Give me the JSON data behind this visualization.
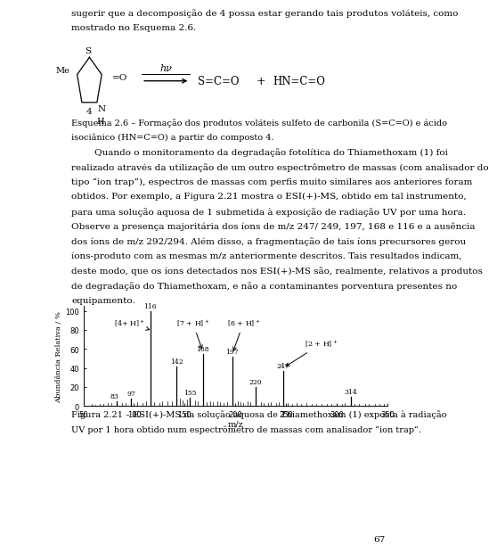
{
  "page_width": 4.52,
  "page_height": 6.4,
  "bg_color": "#ffffff",
  "text_color": "#000000",
  "paragraph1_lines": [
    "sugerir que a decomposição de 4 possa estar gerando tais produtos voláteis, como",
    "mostrado no Esquema 2.6."
  ],
  "scheme_caption_lines": [
    "Esquema 2.6 – Formação dos produtos voláteis sulfeto de carbonila (S=C=O) e ácido",
    "isociânico (HN=C=O) a partir do composto 4."
  ],
  "paragraph2_lines": [
    "        Quando o monitoramento da degradação fotolítica do Thiamethoxam (1) foi",
    "realizado através da utilização de um outro espectrômetro de massas (com analisador do",
    "tipo “ion trap”), espectros de massas com perfis muito similares aos anteriores foram",
    "obtidos. Por exemplo, a Figura 2.21 mostra o ESI(+)-MS, obtido em tal instrumento,",
    "para uma solução aquosa de 1 submetida à exposição de radiação UV por uma hora.",
    "Observe a presença majoritária dos íons de m/z 247/ 249, 197, 168 e 116 e a ausência",
    "dos íons de m/z 292/294. Além disso, a fragmentação de tais íons precursores gerou",
    "íons-produto com as mesmas m/z anteriormente descritos. Tais resultados indicam,",
    "deste modo, que os íons detectados nos ESI(+)-MS são, realmente, relativos a produtos",
    "de degradação do Thiamethoxam, e não a contaminantes porventura presentes no",
    "equipamento."
  ],
  "spectrum_xlim": [
    50,
    350
  ],
  "spectrum_ylim": [
    0,
    100
  ],
  "spectrum_xlabel": "m/z",
  "spectrum_ylabel": "Abundância Relativa / %",
  "spectrum_yticks": [
    0,
    20,
    40,
    60,
    80,
    100
  ],
  "spectrum_xticks": [
    50,
    100,
    150,
    200,
    250,
    300,
    350
  ],
  "peaks": [
    {
      "mz": 83,
      "intensity": 5,
      "label": "83"
    },
    {
      "mz": 97,
      "intensity": 8,
      "label": "97"
    },
    {
      "mz": 116,
      "intensity": 100,
      "label": "116"
    },
    {
      "mz": 142,
      "intensity": 42,
      "label": "142"
    },
    {
      "mz": 155,
      "intensity": 9,
      "label": "155"
    },
    {
      "mz": 168,
      "intensity": 55,
      "label": "168"
    },
    {
      "mz": 197,
      "intensity": 52,
      "label": "197"
    },
    {
      "mz": 220,
      "intensity": 20,
      "label": "220"
    },
    {
      "mz": 247,
      "intensity": 37,
      "label": "247"
    },
    {
      "mz": 314,
      "intensity": 10,
      "label": "314"
    }
  ],
  "small_peaks": [
    {
      "mz": 58,
      "intensity": 2
    },
    {
      "mz": 62,
      "intensity": 1
    },
    {
      "mz": 66,
      "intensity": 2
    },
    {
      "mz": 70,
      "intensity": 2
    },
    {
      "mz": 74,
      "intensity": 3
    },
    {
      "mz": 78,
      "intensity": 3
    },
    {
      "mz": 88,
      "intensity": 3
    },
    {
      "mz": 92,
      "intensity": 3
    },
    {
      "mz": 103,
      "intensity": 4
    },
    {
      "mz": 108,
      "intensity": 3
    },
    {
      "mz": 112,
      "intensity": 5
    },
    {
      "mz": 120,
      "intensity": 4
    },
    {
      "mz": 125,
      "intensity": 3
    },
    {
      "mz": 128,
      "intensity": 5
    },
    {
      "mz": 133,
      "intensity": 5
    },
    {
      "mz": 137,
      "intensity": 5
    },
    {
      "mz": 145,
      "intensity": 8
    },
    {
      "mz": 148,
      "intensity": 6
    },
    {
      "mz": 152,
      "intensity": 7
    },
    {
      "mz": 160,
      "intensity": 6
    },
    {
      "mz": 163,
      "intensity": 5
    },
    {
      "mz": 172,
      "intensity": 4
    },
    {
      "mz": 175,
      "intensity": 5
    },
    {
      "mz": 178,
      "intensity": 4
    },
    {
      "mz": 182,
      "intensity": 5
    },
    {
      "mz": 185,
      "intensity": 4
    },
    {
      "mz": 188,
      "intensity": 3
    },
    {
      "mz": 192,
      "intensity": 4
    },
    {
      "mz": 202,
      "intensity": 5
    },
    {
      "mz": 205,
      "intensity": 4
    },
    {
      "mz": 208,
      "intensity": 3
    },
    {
      "mz": 212,
      "intensity": 5
    },
    {
      "mz": 215,
      "intensity": 4
    },
    {
      "mz": 225,
      "intensity": 4
    },
    {
      "mz": 228,
      "intensity": 3
    },
    {
      "mz": 232,
      "intensity": 3
    },
    {
      "mz": 235,
      "intensity": 4
    },
    {
      "mz": 240,
      "intensity": 3
    },
    {
      "mz": 243,
      "intensity": 4
    },
    {
      "mz": 252,
      "intensity": 3
    },
    {
      "mz": 256,
      "intensity": 2
    },
    {
      "mz": 260,
      "intensity": 3
    },
    {
      "mz": 265,
      "intensity": 2
    },
    {
      "mz": 270,
      "intensity": 3
    },
    {
      "mz": 275,
      "intensity": 2
    },
    {
      "mz": 280,
      "intensity": 2
    },
    {
      "mz": 285,
      "intensity": 2
    },
    {
      "mz": 290,
      "intensity": 2
    },
    {
      "mz": 295,
      "intensity": 2
    },
    {
      "mz": 300,
      "intensity": 2
    },
    {
      "mz": 305,
      "intensity": 2
    },
    {
      "mz": 308,
      "intensity": 3
    },
    {
      "mz": 318,
      "intensity": 2
    },
    {
      "mz": 322,
      "intensity": 2
    },
    {
      "mz": 328,
      "intensity": 2
    },
    {
      "mz": 332,
      "intensity": 2
    },
    {
      "mz": 338,
      "intensity": 2
    },
    {
      "mz": 342,
      "intensity": 2
    },
    {
      "mz": 347,
      "intensity": 2
    }
  ],
  "annotations": [
    {
      "label": "[4+ H]$^+$",
      "text_mz": 96,
      "text_int": 82,
      "peak_mz": 116,
      "peak_int": 80
    },
    {
      "label": "[7 + H]$^+$",
      "text_mz": 158,
      "text_int": 82,
      "peak_mz": 168,
      "peak_int": 57
    },
    {
      "label": "[6 + H]$^+$",
      "text_mz": 208,
      "text_int": 82,
      "peak_mz": 197,
      "peak_int": 55
    },
    {
      "label": "[2 + H]$^+$",
      "text_mz": 285,
      "text_int": 60,
      "peak_mz": 247,
      "peak_int": 40
    }
  ],
  "figure_caption_lines": [
    "Figura 2.21 – ESI(+)-MS da solução aquosa de Thiamethoxam (1) exposta à radiação",
    "UV por 1 hora obtido num espectrômetro de massas com analisador “ion trap”."
  ],
  "page_number": "67"
}
